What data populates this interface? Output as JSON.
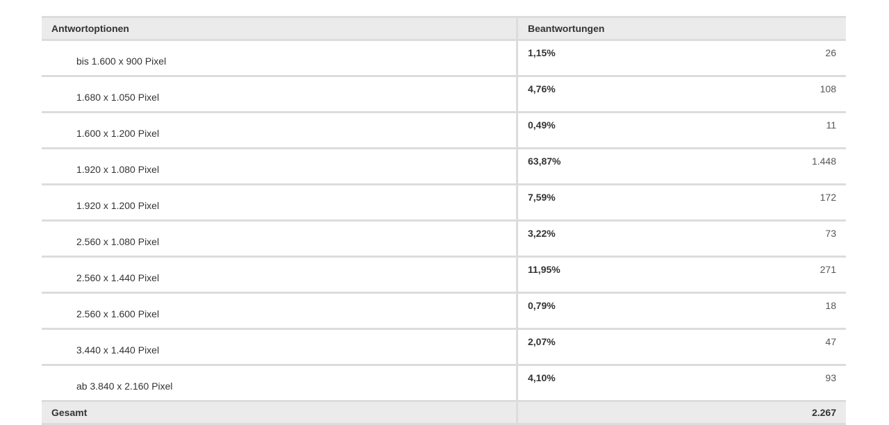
{
  "table": {
    "header": [
      "Antwortoptionen",
      "Beantwortungen"
    ],
    "rows": [
      [
        "bis 1.600 x 900 Pixel",
        "1,15%",
        "26"
      ],
      [
        "1.680 x 1.050 Pixel",
        "4,76%",
        "108"
      ],
      [
        "1.600 x 1.200 Pixel",
        "0,49%",
        "11"
      ],
      [
        "1.920 x 1.080 Pixel",
        "63,87%",
        "1.448"
      ],
      [
        "1.920 x 1.200 Pixel",
        "7,59%",
        "172"
      ],
      [
        "2.560 x 1.080 Pixel",
        "3,22%",
        "73"
      ],
      [
        "2.560 x 1.440 Pixel",
        "11,95%",
        "271"
      ],
      [
        "2.560 x 1.600 Pixel",
        "0,79%",
        "18"
      ],
      [
        "3.440 x 1.440 Pixel",
        "2,07%",
        "47"
      ],
      [
        "ab 3.840 x 2.160 Pixel",
        "4,10%",
        "93"
      ]
    ],
    "footer": [
      "Gesamt",
      "2.267"
    ]
  }
}
